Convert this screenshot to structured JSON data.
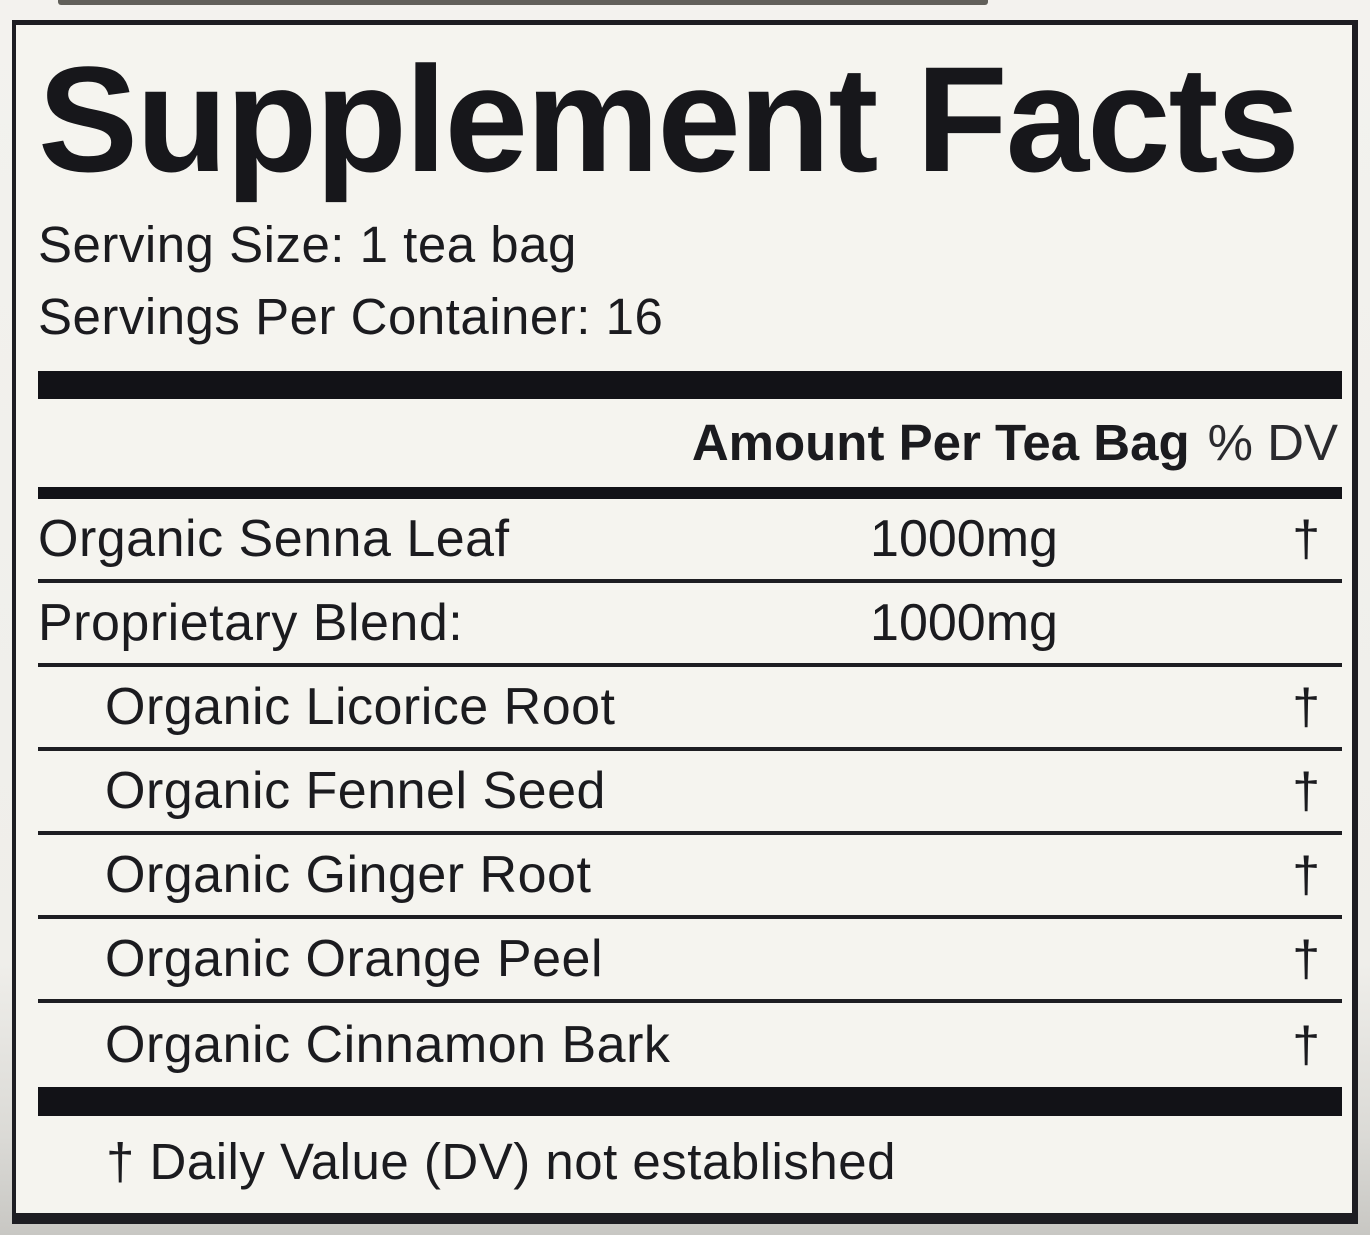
{
  "label": {
    "title": "Supplement Facts",
    "serving_size_line": "Serving Size: 1 tea bag",
    "servings_per_container_line": "Servings Per Container: 16",
    "header": {
      "amount_label": "Amount Per Tea Bag",
      "dv_label": "% DV"
    },
    "rows": [
      {
        "name": "Organic Senna Leaf",
        "amount": "1000mg",
        "dv": "†"
      },
      {
        "name": "Proprietary Blend:",
        "amount": "1000mg",
        "dv": ""
      },
      {
        "name": "Organic Licorice Root",
        "amount": "",
        "dv": "†"
      },
      {
        "name": "Organic Fennel Seed",
        "amount": "",
        "dv": "†"
      },
      {
        "name": "Organic Ginger Root",
        "amount": "",
        "dv": "†"
      },
      {
        "name": "Organic Orange Peel",
        "amount": "",
        "dv": "†"
      },
      {
        "name": "Organic Cinnamon Bark",
        "amount": "",
        "dv": "†"
      }
    ],
    "footnote": "† Daily Value (DV) not established"
  },
  "colors": {
    "label_background": "#f5f4ef",
    "ink": "#1b1b1f",
    "rule": "#1d1d22",
    "outer_background": "#efeeea"
  }
}
